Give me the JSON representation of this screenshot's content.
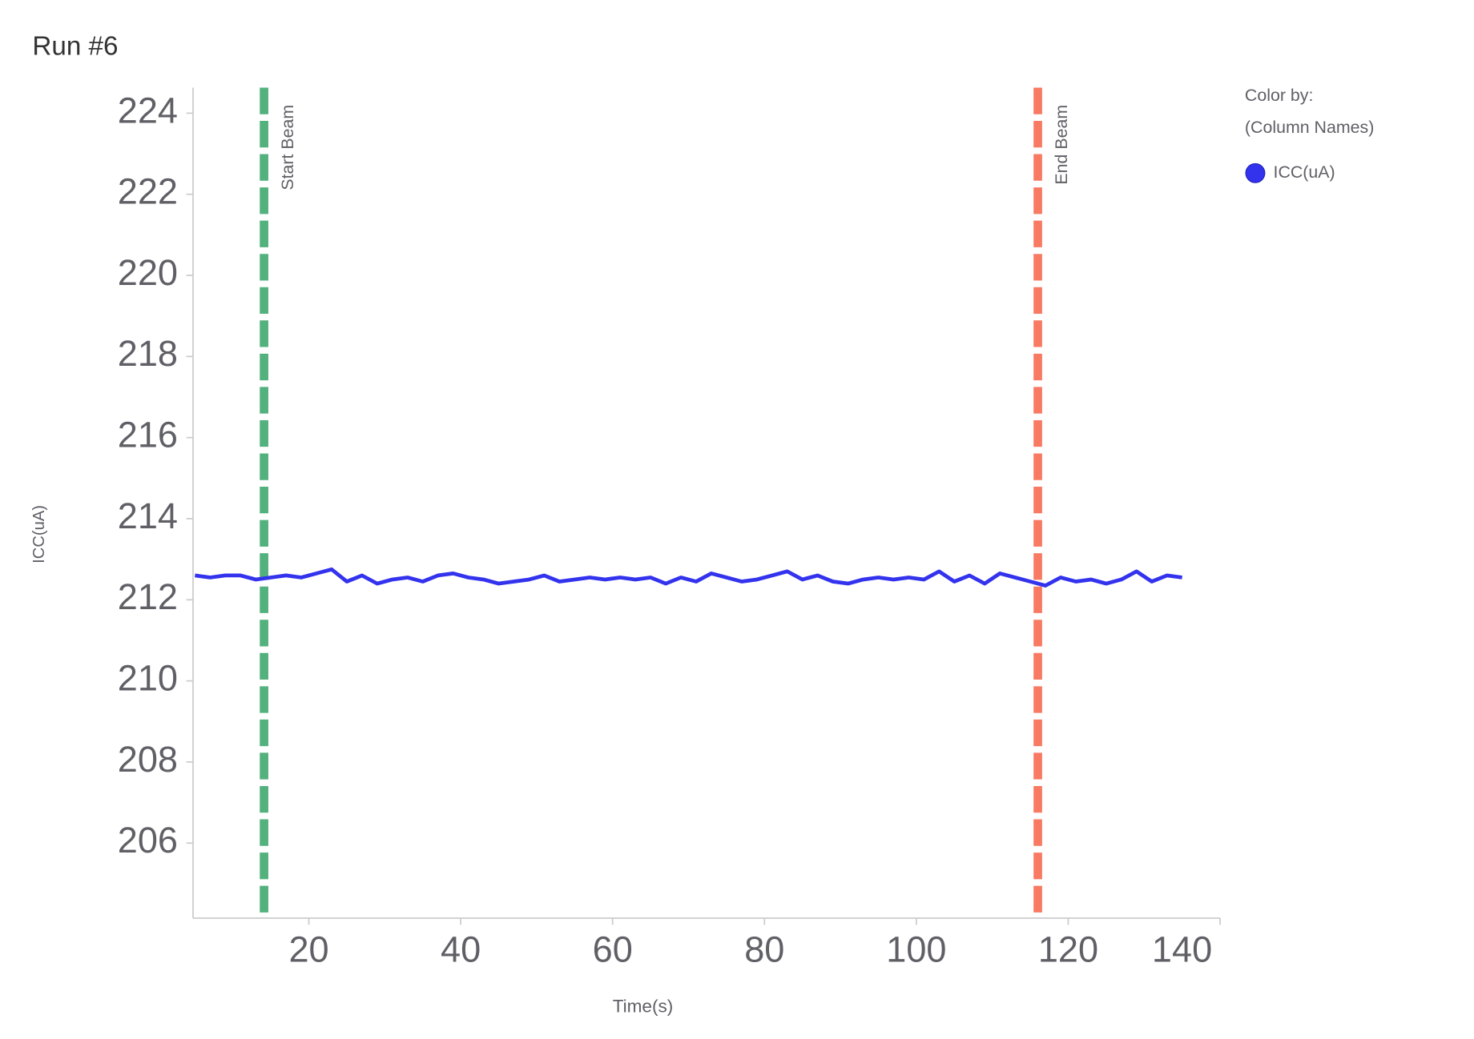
{
  "chart_data": {
    "type": "line",
    "title": "Run #6",
    "x_label": "Time(s)",
    "y_label": "ICC(uA)",
    "xlim": [
      4.75,
      140
    ],
    "xticks": [
      20,
      40,
      60,
      80,
      100,
      120,
      140
    ],
    "ylim": [
      204.15,
      224.63
    ],
    "yticks": [
      206,
      208,
      210,
      212,
      214,
      216,
      218,
      220,
      222,
      224
    ],
    "legend_title": [
      "Color by:",
      "(Column Names)"
    ],
    "x": [
      5,
      7,
      9,
      11,
      13,
      15,
      17,
      19,
      21,
      23,
      25,
      27,
      29,
      31,
      33,
      35,
      37,
      39,
      41,
      43,
      45,
      47,
      49,
      51,
      53,
      55,
      57,
      59,
      61,
      63,
      65,
      67,
      69,
      71,
      73,
      75,
      77,
      79,
      81,
      83,
      85,
      87,
      89,
      91,
      93,
      95,
      97,
      99,
      101,
      103,
      105,
      107,
      109,
      111,
      113,
      115,
      117,
      119,
      121,
      123,
      125,
      127,
      129,
      131,
      133,
      135
    ],
    "series": [
      {
        "name": "ICC(uA)",
        "color": "#3333ee",
        "values": [
          212.6,
          212.55,
          212.6,
          212.6,
          212.5,
          212.55,
          212.6,
          212.55,
          212.65,
          212.75,
          212.45,
          212.6,
          212.4,
          212.5,
          212.55,
          212.45,
          212.6,
          212.65,
          212.55,
          212.5,
          212.4,
          212.45,
          212.5,
          212.6,
          212.45,
          212.5,
          212.55,
          212.5,
          212.55,
          212.5,
          212.55,
          212.4,
          212.55,
          212.45,
          212.65,
          212.55,
          212.45,
          212.5,
          212.6,
          212.7,
          212.5,
          212.6,
          212.45,
          212.4,
          212.5,
          212.55,
          212.5,
          212.55,
          212.5,
          212.7,
          212.45,
          212.6,
          212.4,
          212.65,
          212.55,
          212.45,
          212.35,
          212.55,
          212.45,
          212.5,
          212.4,
          212.5,
          212.7,
          212.45,
          212.6,
          212.55
        ]
      }
    ],
    "vlines": [
      {
        "x": 14.1,
        "label": "Start Beam",
        "color": "#52b17d"
      },
      {
        "x": 116,
        "label": "End Beam",
        "color": "#f87a63"
      }
    ]
  }
}
